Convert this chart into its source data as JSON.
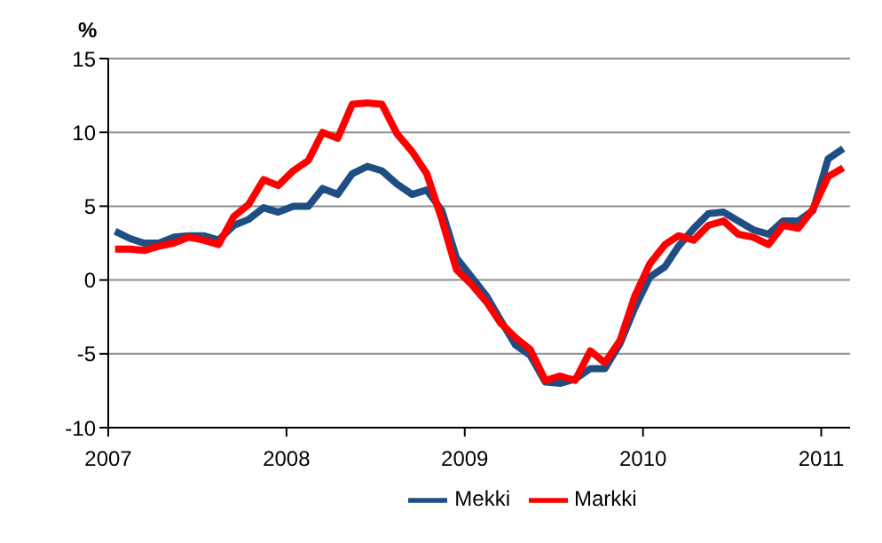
{
  "chart_data": {
    "type": "line",
    "ylabel": "%",
    "x": [
      "2007-01-15",
      "2007-02-15",
      "2007-03-15",
      "2007-04-15",
      "2007-05-15",
      "2007-06-15",
      "2007-07-15",
      "2007-08-15",
      "2007-09-15",
      "2007-10-15",
      "2007-11-15",
      "2007-12-15",
      "2008-01-15",
      "2008-02-15",
      "2008-03-15",
      "2008-04-15",
      "2008-05-15",
      "2008-06-15",
      "2008-07-15",
      "2008-08-15",
      "2008-09-15",
      "2008-10-15",
      "2008-11-15",
      "2008-12-15",
      "2009-01-15",
      "2009-02-15",
      "2009-03-15",
      "2009-04-15",
      "2009-05-15",
      "2009-06-15",
      "2009-07-15",
      "2009-08-15",
      "2009-09-15",
      "2009-10-15",
      "2009-11-15",
      "2009-12-15",
      "2010-01-15",
      "2010-02-15",
      "2010-03-15",
      "2010-04-15",
      "2010-05-15",
      "2010-06-15",
      "2010-07-15",
      "2010-08-15",
      "2010-09-15",
      "2010-10-15",
      "2010-11-15",
      "2010-12-15",
      "2011-01-15",
      "2011-02-15"
    ],
    "series": [
      {
        "name": "Mekki",
        "color": "#1f4e84",
        "values": [
          3.3,
          2.8,
          2.5,
          2.5,
          2.9,
          3.0,
          3.0,
          2.7,
          3.7,
          4.1,
          4.9,
          4.6,
          5.0,
          5.0,
          6.2,
          5.8,
          7.2,
          7.7,
          7.4,
          6.5,
          5.8,
          6.1,
          4.7,
          1.5,
          0.2,
          -1.1,
          -2.7,
          -4.4,
          -5.1,
          -6.9,
          -7.0,
          -6.7,
          -6.0,
          -6.0,
          -4.3,
          -1.9,
          0.2,
          0.9,
          2.3,
          3.5,
          4.5,
          4.6,
          4.0,
          3.4,
          3.1,
          4.0,
          4.0,
          4.7,
          8.2,
          8.9
        ]
      },
      {
        "name": "Markki",
        "color": "#ff0000",
        "values": [
          2.1,
          2.1,
          2.0,
          2.3,
          2.5,
          2.9,
          2.7,
          2.4,
          4.3,
          5.1,
          6.8,
          6.4,
          7.4,
          8.1,
          10.0,
          9.6,
          11.9,
          12.0,
          11.9,
          9.9,
          8.7,
          7.2,
          4.1,
          0.7,
          -0.3,
          -1.5,
          -2.9,
          -3.9,
          -4.7,
          -6.8,
          -6.5,
          -6.8,
          -4.8,
          -5.6,
          -4.1,
          -1.1,
          1.1,
          2.4,
          3.0,
          2.7,
          3.7,
          4.0,
          3.1,
          2.9,
          2.4,
          3.7,
          3.5,
          4.8,
          7.0,
          7.6
        ]
      }
    ],
    "xlim": [
      "2007-01-01",
      "2011-03-01"
    ],
    "xticks": [
      "2007",
      "2008",
      "2009",
      "2010",
      "2011"
    ],
    "ylim": [
      -10,
      15
    ],
    "yticks": [
      -10,
      -5,
      0,
      5,
      10,
      15
    ],
    "grid": "y",
    "legend": "bottom",
    "marker": "none",
    "line_style": "solid"
  }
}
